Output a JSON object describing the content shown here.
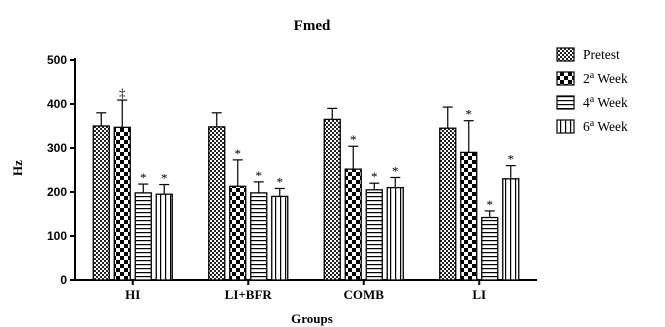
{
  "chart_data": {
    "type": "bar",
    "title": "Fmed",
    "xlabel": "Groups",
    "ylabel": "Hz",
    "ylim": [
      0,
      500
    ],
    "yticks": [
      0,
      100,
      200,
      300,
      400,
      500
    ],
    "categories": [
      "HI",
      "LI+BFR",
      "COMB",
      "LI"
    ],
    "series": [
      {
        "name": "Pretest",
        "name_sup": "",
        "pattern": "dense-check",
        "values": [
          350,
          348,
          365,
          345
        ],
        "errors": [
          30,
          32,
          25,
          48
        ],
        "markers": [
          "",
          "",
          "",
          ""
        ]
      },
      {
        "name": "2",
        "name_sup": "a",
        "name_suffix": " Week",
        "pattern": "checker",
        "values": [
          347,
          213,
          252,
          290
        ],
        "errors": [
          62,
          60,
          52,
          72
        ],
        "markers": [
          "‡",
          "*",
          "*",
          "*"
        ]
      },
      {
        "name": "4",
        "name_sup": "a",
        "name_suffix": " Week",
        "pattern": "hlines",
        "values": [
          198,
          198,
          205,
          142
        ],
        "errors": [
          20,
          25,
          15,
          15
        ],
        "markers": [
          "*",
          "*",
          "*",
          "*"
        ]
      },
      {
        "name": "6",
        "name_sup": "a",
        "name_suffix": " Week",
        "pattern": "vlines",
        "values": [
          195,
          190,
          210,
          230
        ],
        "errors": [
          22,
          18,
          23,
          30
        ],
        "markers": [
          "*",
          "*",
          "*",
          "*"
        ]
      }
    ],
    "grid": false,
    "legend_position": "right"
  }
}
